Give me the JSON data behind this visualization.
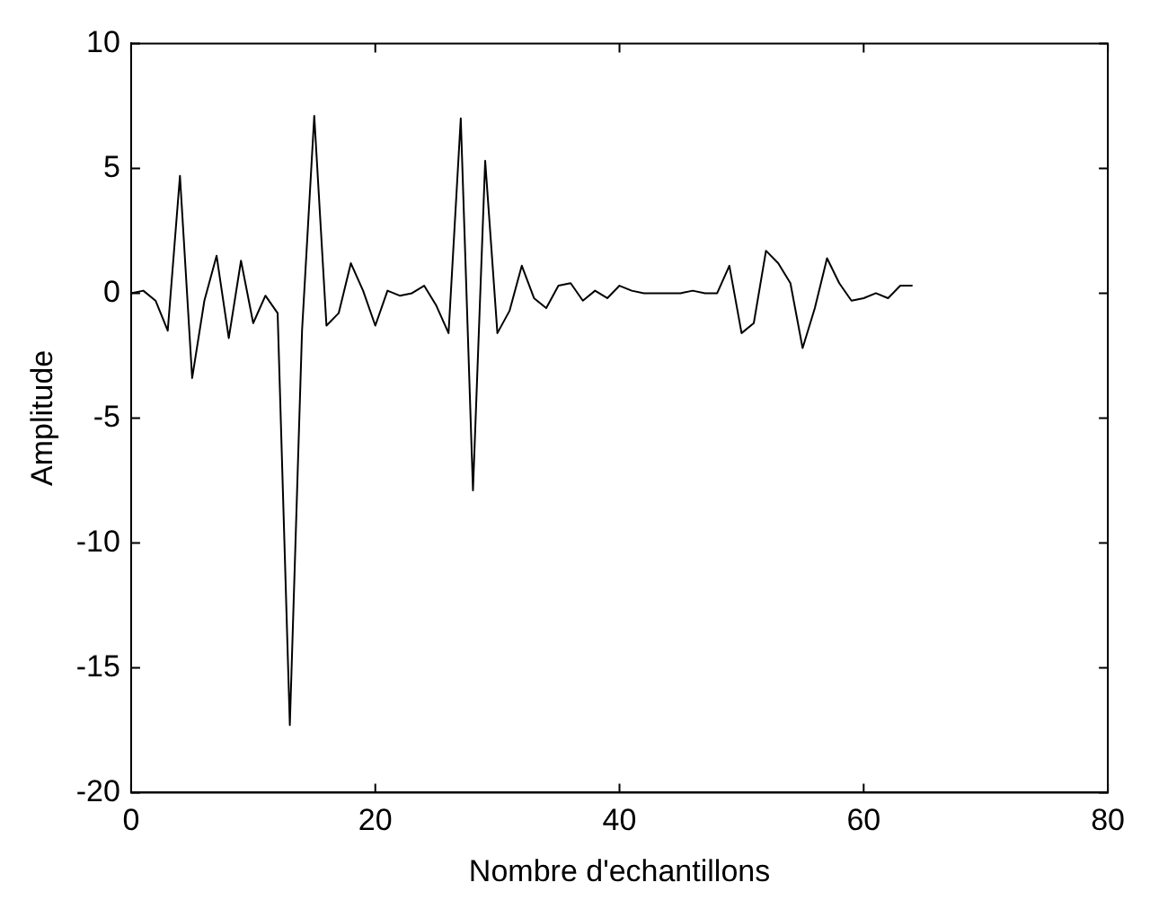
{
  "chart_data": {
    "type": "line",
    "xlabel": "Nombre d'echantillons",
    "ylabel": "Amplitude",
    "x": [
      0,
      1,
      2,
      3,
      4,
      5,
      6,
      7,
      8,
      9,
      10,
      11,
      12,
      13,
      14,
      15,
      16,
      17,
      18,
      19,
      20,
      21,
      22,
      23,
      24,
      25,
      26,
      27,
      28,
      29,
      30,
      31,
      32,
      33,
      34,
      35,
      36,
      37,
      38,
      39,
      40,
      41,
      42,
      43,
      44,
      45,
      46,
      47,
      48,
      49,
      50,
      51,
      52,
      53,
      54,
      55,
      56,
      57,
      58,
      59,
      60,
      61,
      62,
      63,
      64
    ],
    "series": [
      {
        "color": "#000000",
        "values": [
          0,
          0.1,
          -0.3,
          -1.5,
          4.7,
          -3.4,
          -0.3,
          1.5,
          -1.8,
          1.3,
          -1.2,
          -0.1,
          -0.8,
          -17.3,
          -1.5,
          7.1,
          -1.3,
          -0.8,
          1.2,
          0.1,
          -1.3,
          0.1,
          -0.1,
          0,
          0.3,
          -0.5,
          -1.6,
          7,
          -7.9,
          5.3,
          -1.6,
          -0.7,
          1.1,
          -0.2,
          -0.6,
          0.3,
          0.4,
          -0.3,
          0.1,
          -0.2,
          0.3,
          0.1,
          0,
          0,
          0,
          0,
          0.1,
          0,
          0,
          1.1,
          -1.6,
          -1.2,
          1.7,
          1.2,
          0.4,
          -2.2,
          -0.6,
          1.4,
          0.4,
          -0.3,
          -0.2,
          0,
          -0.2,
          0.3,
          0.3
        ]
      }
    ],
    "xlim": [
      0,
      80
    ],
    "xticks": [
      0,
      20,
      40,
      60,
      80
    ],
    "ylim": [
      -20,
      10
    ],
    "yticks": [
      -20,
      -15,
      -10,
      -5,
      0,
      5,
      10
    ],
    "grid": false,
    "legend": false,
    "marker": "none",
    "line_style": "solid"
  }
}
